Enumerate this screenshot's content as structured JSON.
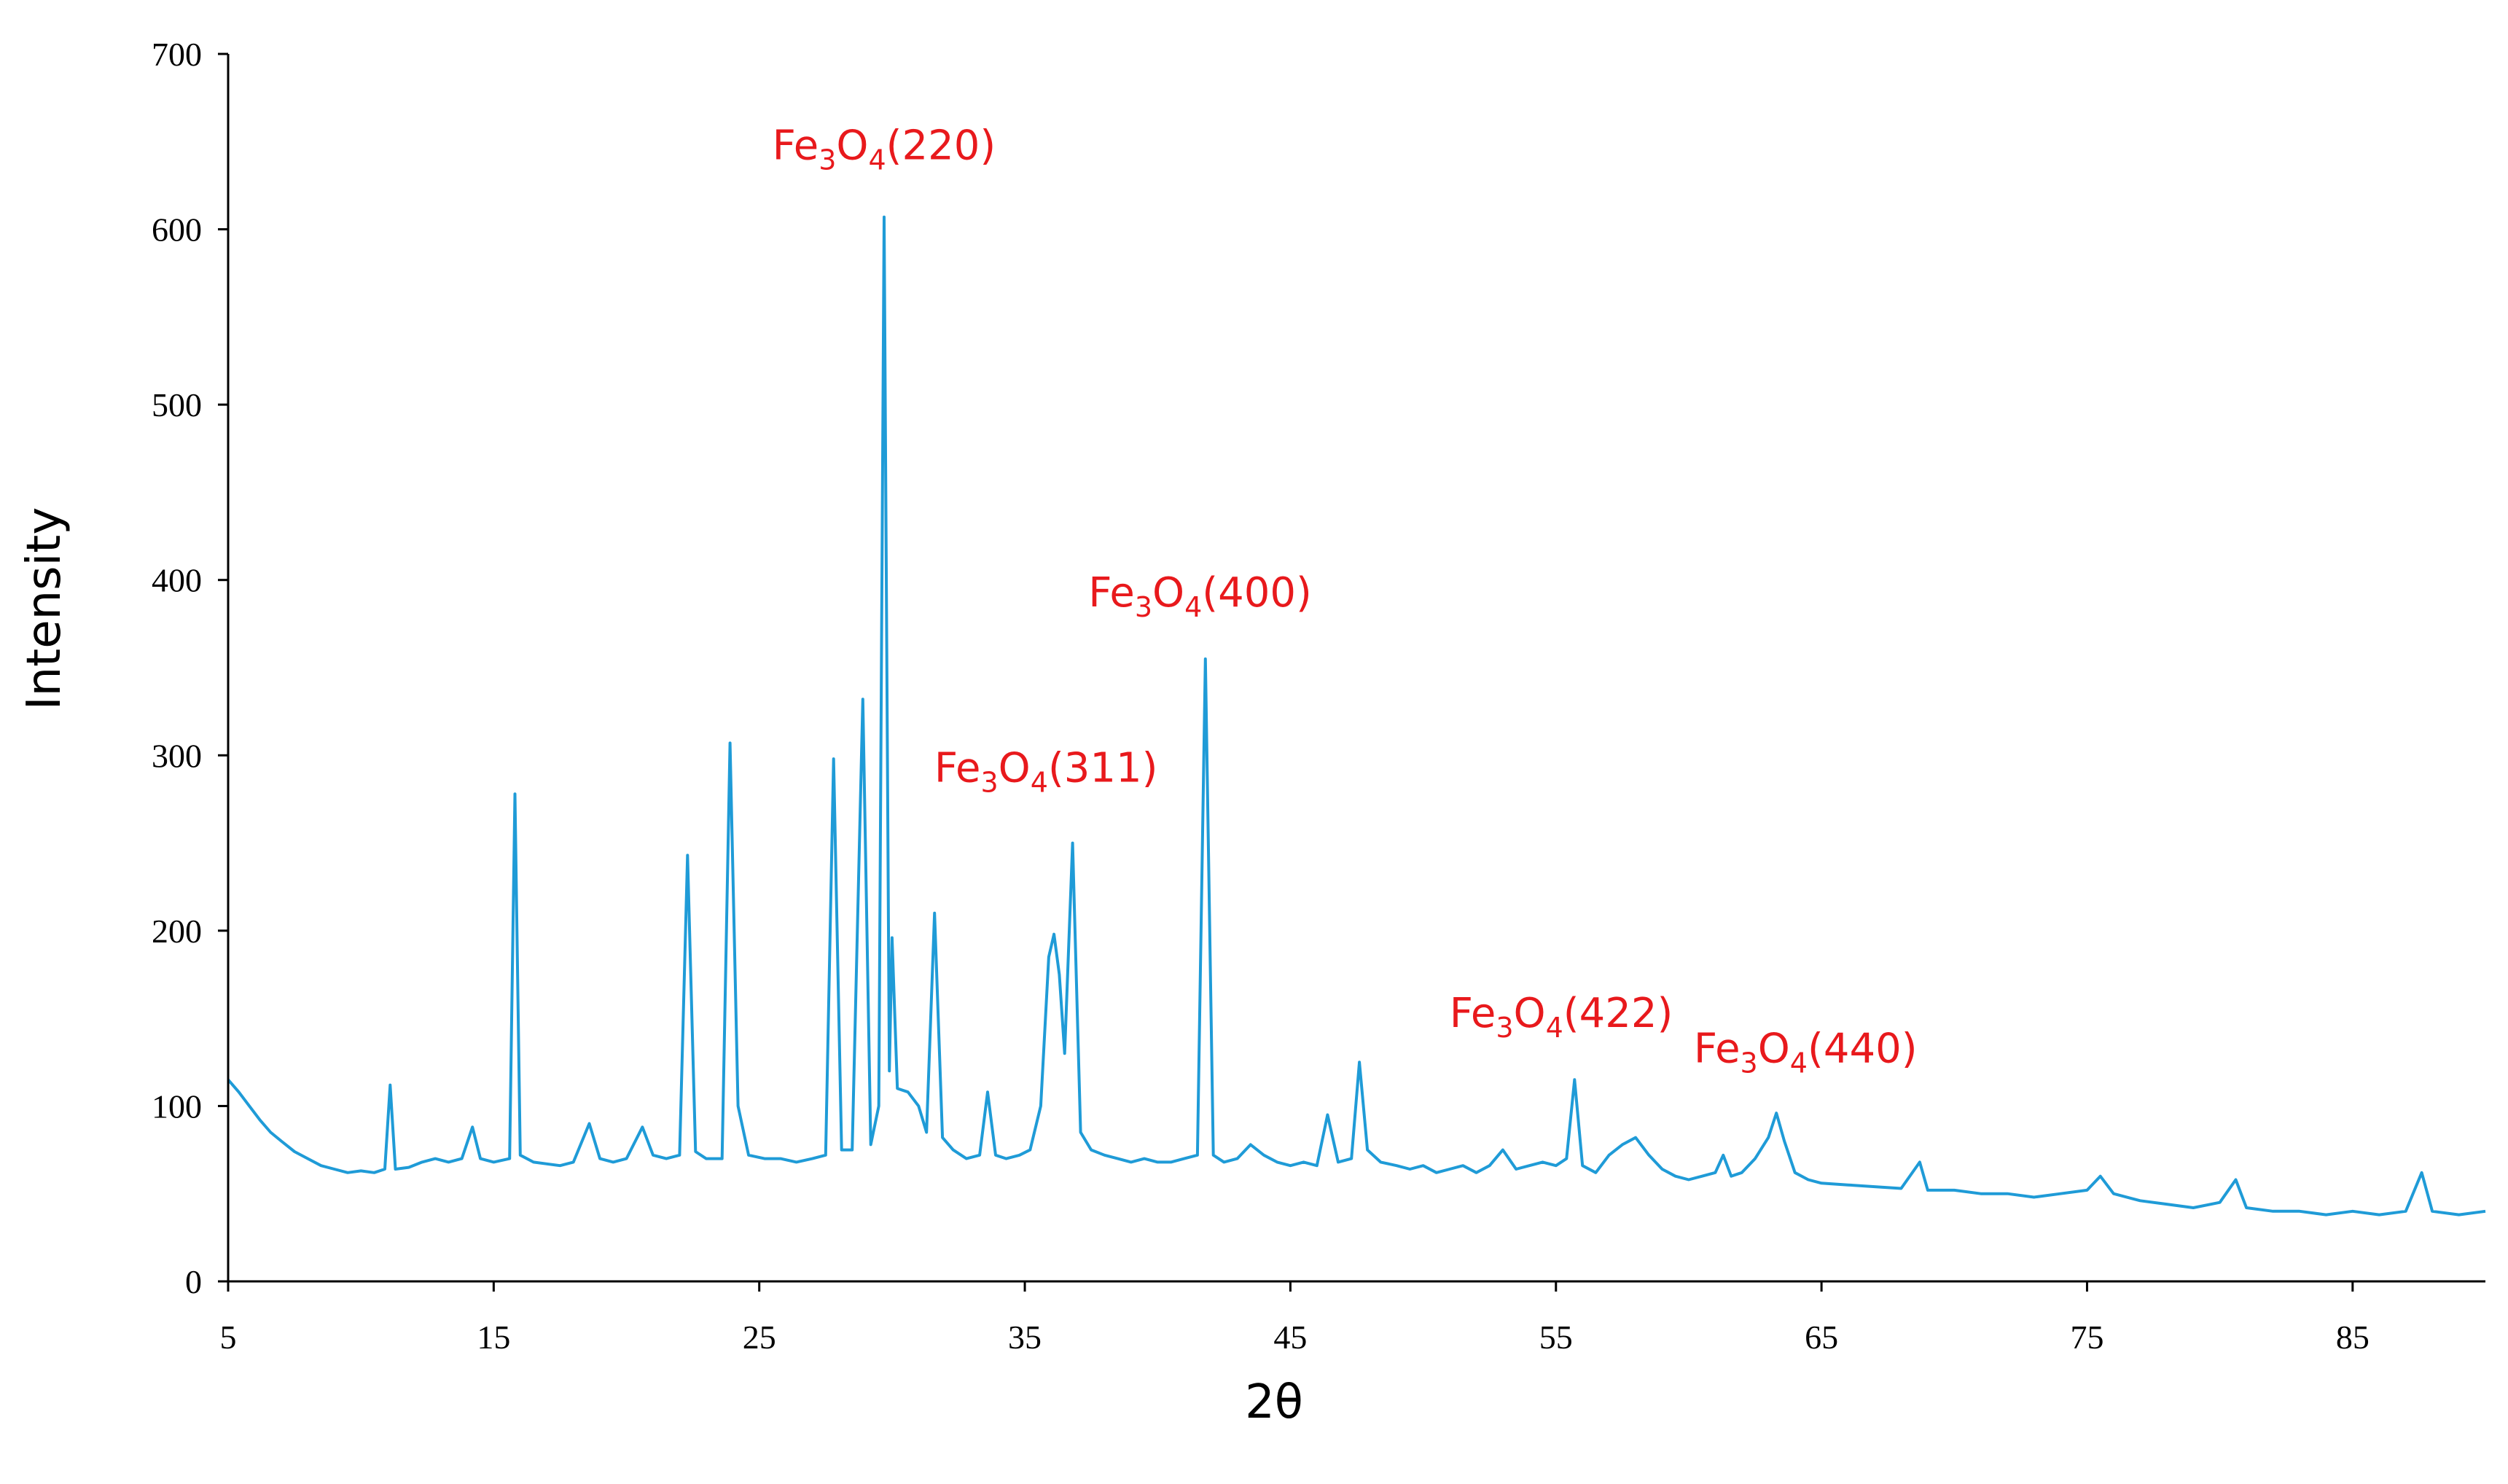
{
  "chart_data": {
    "type": "line",
    "title": "",
    "xlabel": "2θ",
    "ylabel": "Intensity",
    "xlim": [
      5,
      90
    ],
    "ylim": [
      0,
      700
    ],
    "x_ticks": [
      5,
      15,
      25,
      35,
      45,
      55,
      65,
      75,
      85
    ],
    "y_ticks": [
      0,
      100,
      200,
      300,
      400,
      500,
      600,
      700
    ],
    "grid": false,
    "legend": "none",
    "colors": {
      "series": "#1f9bd7",
      "annotation": "#e8191c",
      "axis": "#000000"
    },
    "series": [
      {
        "points": [
          [
            5.0,
            115
          ],
          [
            5.4,
            108
          ],
          [
            5.8,
            100
          ],
          [
            6.2,
            92
          ],
          [
            6.6,
            85
          ],
          [
            7.0,
            80
          ],
          [
            7.5,
            74
          ],
          [
            8.0,
            70
          ],
          [
            8.5,
            66
          ],
          [
            9.0,
            64
          ],
          [
            9.5,
            62
          ],
          [
            10.0,
            63
          ],
          [
            10.5,
            62
          ],
          [
            10.9,
            64
          ],
          [
            11.1,
            112
          ],
          [
            11.3,
            64
          ],
          [
            11.8,
            65
          ],
          [
            12.3,
            68
          ],
          [
            12.8,
            70
          ],
          [
            13.3,
            68
          ],
          [
            13.8,
            70
          ],
          [
            14.2,
            88
          ],
          [
            14.5,
            70
          ],
          [
            15.0,
            68
          ],
          [
            15.6,
            70
          ],
          [
            15.8,
            278
          ],
          [
            16.0,
            72
          ],
          [
            16.5,
            68
          ],
          [
            17.0,
            67
          ],
          [
            17.5,
            66
          ],
          [
            18.0,
            68
          ],
          [
            18.6,
            90
          ],
          [
            19.0,
            70
          ],
          [
            19.5,
            68
          ],
          [
            20.0,
            70
          ],
          [
            20.6,
            88
          ],
          [
            21.0,
            72
          ],
          [
            21.5,
            70
          ],
          [
            22.0,
            72
          ],
          [
            22.3,
            243
          ],
          [
            22.6,
            74
          ],
          [
            23.0,
            70
          ],
          [
            23.6,
            70
          ],
          [
            23.9,
            307
          ],
          [
            24.2,
            100
          ],
          [
            24.6,
            72
          ],
          [
            25.2,
            70
          ],
          [
            25.8,
            70
          ],
          [
            26.4,
            68
          ],
          [
            27.0,
            70
          ],
          [
            27.5,
            72
          ],
          [
            27.8,
            298
          ],
          [
            28.1,
            75
          ],
          [
            28.5,
            75
          ],
          [
            28.9,
            332
          ],
          [
            29.2,
            78
          ],
          [
            29.5,
            100
          ],
          [
            29.7,
            607
          ],
          [
            29.9,
            120
          ],
          [
            30.0,
            196
          ],
          [
            30.2,
            110
          ],
          [
            30.6,
            108
          ],
          [
            31.0,
            100
          ],
          [
            31.3,
            85
          ],
          [
            31.6,
            210
          ],
          [
            31.9,
            82
          ],
          [
            32.3,
            75
          ],
          [
            32.8,
            70
          ],
          [
            33.3,
            72
          ],
          [
            33.6,
            108
          ],
          [
            33.9,
            72
          ],
          [
            34.3,
            70
          ],
          [
            34.8,
            72
          ],
          [
            35.2,
            75
          ],
          [
            35.6,
            100
          ],
          [
            35.9,
            185
          ],
          [
            36.1,
            198
          ],
          [
            36.3,
            175
          ],
          [
            36.5,
            130
          ],
          [
            36.8,
            250
          ],
          [
            37.1,
            85
          ],
          [
            37.5,
            75
          ],
          [
            38.0,
            72
          ],
          [
            38.5,
            70
          ],
          [
            39.0,
            68
          ],
          [
            39.5,
            70
          ],
          [
            40.0,
            68
          ],
          [
            40.5,
            68
          ],
          [
            41.0,
            70
          ],
          [
            41.5,
            72
          ],
          [
            41.8,
            355
          ],
          [
            42.1,
            72
          ],
          [
            42.5,
            68
          ],
          [
            43.0,
            70
          ],
          [
            43.5,
            78
          ],
          [
            44.0,
            72
          ],
          [
            44.5,
            68
          ],
          [
            45.0,
            66
          ],
          [
            45.5,
            68
          ],
          [
            46.0,
            66
          ],
          [
            46.4,
            95
          ],
          [
            46.8,
            68
          ],
          [
            47.3,
            70
          ],
          [
            47.6,
            125
          ],
          [
            47.9,
            75
          ],
          [
            48.4,
            68
          ],
          [
            49.0,
            66
          ],
          [
            49.5,
            64
          ],
          [
            50.0,
            66
          ],
          [
            50.5,
            62
          ],
          [
            51.0,
            64
          ],
          [
            51.5,
            66
          ],
          [
            52.0,
            62
          ],
          [
            52.5,
            66
          ],
          [
            53.0,
            75
          ],
          [
            53.5,
            64
          ],
          [
            54.0,
            66
          ],
          [
            54.5,
            68
          ],
          [
            55.0,
            66
          ],
          [
            55.4,
            70
          ],
          [
            55.7,
            115
          ],
          [
            56.0,
            66
          ],
          [
            56.5,
            62
          ],
          [
            57.0,
            72
          ],
          [
            57.5,
            78
          ],
          [
            58.0,
            82
          ],
          [
            58.5,
            72
          ],
          [
            59.0,
            64
          ],
          [
            59.5,
            60
          ],
          [
            60.0,
            58
          ],
          [
            60.5,
            60
          ],
          [
            61.0,
            62
          ],
          [
            61.3,
            72
          ],
          [
            61.6,
            60
          ],
          [
            62.0,
            62
          ],
          [
            62.5,
            70
          ],
          [
            63.0,
            82
          ],
          [
            63.3,
            96
          ],
          [
            63.6,
            80
          ],
          [
            64.0,
            62
          ],
          [
            64.5,
            58
          ],
          [
            65.0,
            56
          ],
          [
            66.0,
            55
          ],
          [
            67.0,
            54
          ],
          [
            68.0,
            53
          ],
          [
            68.7,
            68
          ],
          [
            69.0,
            52
          ],
          [
            70.0,
            52
          ],
          [
            71.0,
            50
          ],
          [
            72.0,
            50
          ],
          [
            73.0,
            48
          ],
          [
            74.0,
            50
          ],
          [
            75.0,
            52
          ],
          [
            75.5,
            60
          ],
          [
            76.0,
            50
          ],
          [
            77.0,
            46
          ],
          [
            78.0,
            44
          ],
          [
            79.0,
            42
          ],
          [
            80.0,
            45
          ],
          [
            80.6,
            58
          ],
          [
            81.0,
            42
          ],
          [
            82.0,
            40
          ],
          [
            83.0,
            40
          ],
          [
            84.0,
            38
          ],
          [
            85.0,
            40
          ],
          [
            86.0,
            38
          ],
          [
            87.0,
            40
          ],
          [
            87.6,
            62
          ],
          [
            88.0,
            40
          ],
          [
            89.0,
            38
          ],
          [
            90.0,
            40
          ]
        ]
      }
    ],
    "annotations": [
      {
        "base": "Fe",
        "sub1": "3",
        "mid": "O",
        "sub2": "4",
        "hkl": "(220)",
        "x": 29.7,
        "y": 640
      },
      {
        "base": "Fe",
        "sub1": "3",
        "mid": "O",
        "sub2": "4",
        "hkl": "(311)",
        "x": 35.8,
        "y": 285
      },
      {
        "base": "Fe",
        "sub1": "3",
        "mid": "O",
        "sub2": "4",
        "hkl": "(400)",
        "x": 41.6,
        "y": 385
      },
      {
        "base": "Fe",
        "sub1": "3",
        "mid": "O",
        "sub2": "4",
        "hkl": "(422)",
        "x": 55.2,
        "y": 145
      },
      {
        "base": "Fe",
        "sub1": "3",
        "mid": "O",
        "sub2": "4",
        "hkl": "(440)",
        "x": 64.4,
        "y": 125
      }
    ]
  }
}
